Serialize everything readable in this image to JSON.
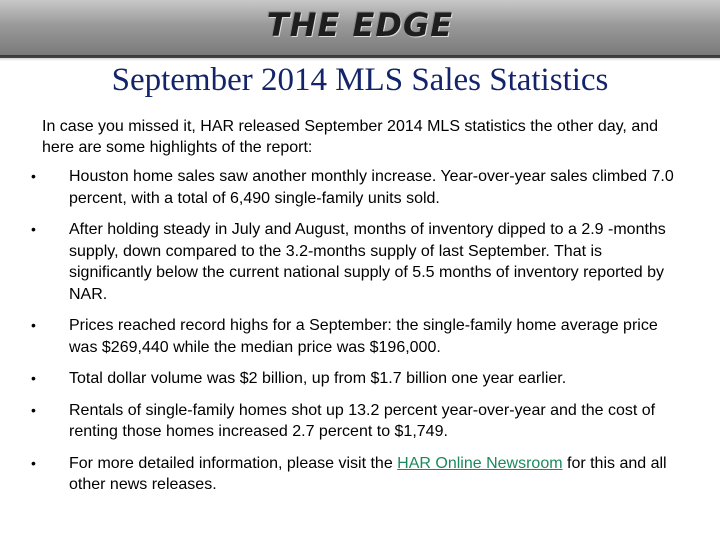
{
  "header": {
    "logo_text": "THE EDGE"
  },
  "title": "September 2014 MLS Sales Statistics",
  "intro": "In case you missed it, HAR released September 2014 MLS statistics the other day, and here are some highlights of the report:",
  "bullet_char": "•",
  "bullets": [
    "Houston home sales saw another monthly increase. Year-over-year sales climbed 7.0 percent, with a total of 6,490 single-family units sold.",
    "After holding steady in July and August, months of inventory dipped to a 2.9 -months supply, down compared to the 3.2-months supply of last September. That is significantly below the current national supply of 5.5 months of inventory reported by NAR.",
    "Prices reached record highs for a September: the single-family home average price was $269,440 while the median price was $196,000.",
    "Total dollar volume was $2 billion, up from $1.7 billion one year earlier.",
    "Rentals of single-family homes shot up 13.2 percent year-over-year and the cost of renting those homes increased 2.7 percent to $1,749."
  ],
  "last_bullet": {
    "before_link": "For more detailed information, please visit the ",
    "link_text": "HAR Online Newsroom",
    "after_link": " for this and all other news releases."
  },
  "colors": {
    "title": "#14246a",
    "link": "#1a8a5c",
    "header_bar": "#9a9a9a"
  }
}
